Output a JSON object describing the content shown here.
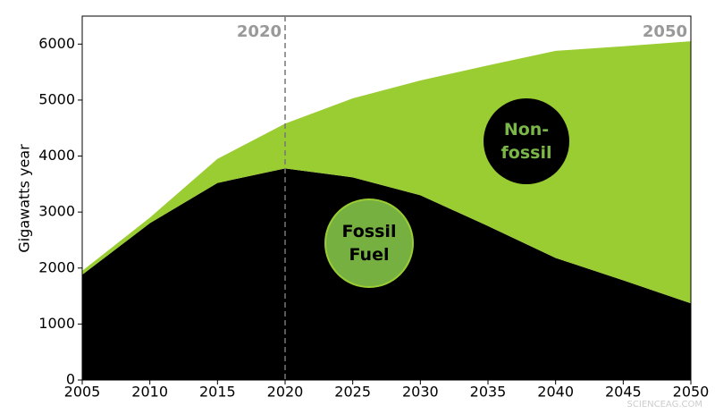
{
  "chart_data": {
    "type": "stacked_area",
    "ylabel": "Gigawatts year",
    "x": [
      2005,
      2010,
      2015,
      2020,
      2025,
      2030,
      2035,
      2040,
      2045,
      2050
    ],
    "series": [
      {
        "name": "Fossil Fuel",
        "color": "#000000",
        "values": [
          1880,
          2800,
          3520,
          3780,
          3620,
          3300,
          2750,
          2180,
          1780,
          1370
        ]
      },
      {
        "name": "Non-fossil",
        "color": "#9acd32",
        "values": [
          70,
          100,
          430,
          800,
          1410,
          2050,
          2870,
          3700,
          4180,
          4680
        ]
      }
    ],
    "xlim": [
      2005,
      2050
    ],
    "xticks": [
      2005,
      2010,
      2015,
      2020,
      2025,
      2030,
      2035,
      2040,
      2045,
      2050
    ],
    "ylim": [
      0,
      6500
    ],
    "yticks": [
      0,
      1000,
      2000,
      3000,
      4000,
      5000,
      6000
    ],
    "annotations": [
      {
        "text": "2020",
        "x": 2020
      },
      {
        "text": "2050",
        "x": 2050
      }
    ],
    "watermark": "SCIENCEAG.COM"
  }
}
